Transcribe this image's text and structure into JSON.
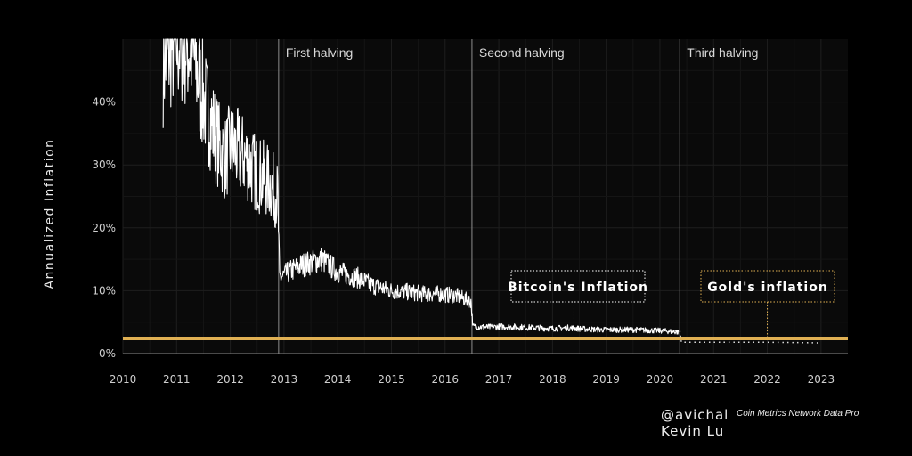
{
  "chart_data": {
    "type": "line",
    "ylabel": "Annualized Inflation",
    "x_ticks": [
      "2010",
      "2011",
      "2012",
      "2013",
      "2014",
      "2015",
      "2016",
      "2017",
      "2018",
      "2019",
      "2020",
      "2021",
      "2022",
      "2023"
    ],
    "y_ticks": [
      "0%",
      "10%",
      "20%",
      "30%",
      "40%"
    ],
    "xlim": [
      2010,
      2023.5
    ],
    "ylim": [
      0,
      50
    ],
    "grid": true,
    "halvings": [
      {
        "label": "First halving",
        "x": 2012.9
      },
      {
        "label": "Second halving",
        "x": 2016.5
      },
      {
        "label": "Third halving",
        "x": 2020.37
      }
    ],
    "series": [
      {
        "name": "Bitcoin's Inflation",
        "color": "#ffffff",
        "points": [
          [
            2010.75,
            46
          ],
          [
            2010.9,
            49
          ],
          [
            2011.1,
            50
          ],
          [
            2011.3,
            48
          ],
          [
            2011.45,
            42
          ],
          [
            2011.6,
            38
          ],
          [
            2011.75,
            34
          ],
          [
            2011.9,
            31
          ],
          [
            2012.0,
            33
          ],
          [
            2012.15,
            32
          ],
          [
            2012.3,
            31
          ],
          [
            2012.45,
            29
          ],
          [
            2012.6,
            28
          ],
          [
            2012.75,
            27
          ],
          [
            2012.88,
            25
          ],
          [
            2012.92,
            12
          ],
          [
            2013.1,
            13
          ],
          [
            2013.3,
            14
          ],
          [
            2013.5,
            14.5
          ],
          [
            2013.7,
            15
          ],
          [
            2013.85,
            14
          ],
          [
            2014.0,
            13
          ],
          [
            2014.2,
            12.5
          ],
          [
            2014.4,
            12
          ],
          [
            2014.6,
            11
          ],
          [
            2014.8,
            10.5
          ],
          [
            2015.0,
            10
          ],
          [
            2015.3,
            9.8
          ],
          [
            2015.6,
            9.5
          ],
          [
            2015.9,
            9.5
          ],
          [
            2016.2,
            9.2
          ],
          [
            2016.48,
            8.3
          ],
          [
            2016.52,
            4.3
          ],
          [
            2016.8,
            4.2
          ],
          [
            2017.1,
            4.3
          ],
          [
            2017.4,
            4.2
          ],
          [
            2017.7,
            4.1
          ],
          [
            2018.0,
            4.0
          ],
          [
            2018.3,
            4.1
          ],
          [
            2018.6,
            3.9
          ],
          [
            2018.9,
            3.8
          ],
          [
            2019.2,
            3.8
          ],
          [
            2019.5,
            3.8
          ],
          [
            2019.8,
            3.7
          ],
          [
            2020.1,
            3.6
          ],
          [
            2020.35,
            3.4
          ]
        ],
        "projected": [
          [
            2020.0,
            3.7
          ],
          [
            2020.37,
            3.6
          ],
          [
            2020.4,
            1.8
          ],
          [
            2021.0,
            1.8
          ],
          [
            2021.5,
            1.8
          ],
          [
            2022.0,
            1.8
          ],
          [
            2022.5,
            1.75
          ],
          [
            2022.95,
            1.7
          ]
        ]
      },
      {
        "name": "Gold's inflation",
        "color": "#e0b053",
        "points": [
          [
            2010,
            2.4
          ],
          [
            2023.5,
            2.4
          ]
        ]
      }
    ],
    "annotations": [
      {
        "text": "Bitcoin's Inflation",
        "x": 2018.4,
        "y": 3.9
      },
      {
        "text": "Gold's inflation",
        "x": 2022.0,
        "y": 2.4
      }
    ]
  },
  "credits": {
    "handle": "@avichal",
    "author": "Kevin Lu",
    "source": "Coin Metrics Network Data Pro"
  }
}
